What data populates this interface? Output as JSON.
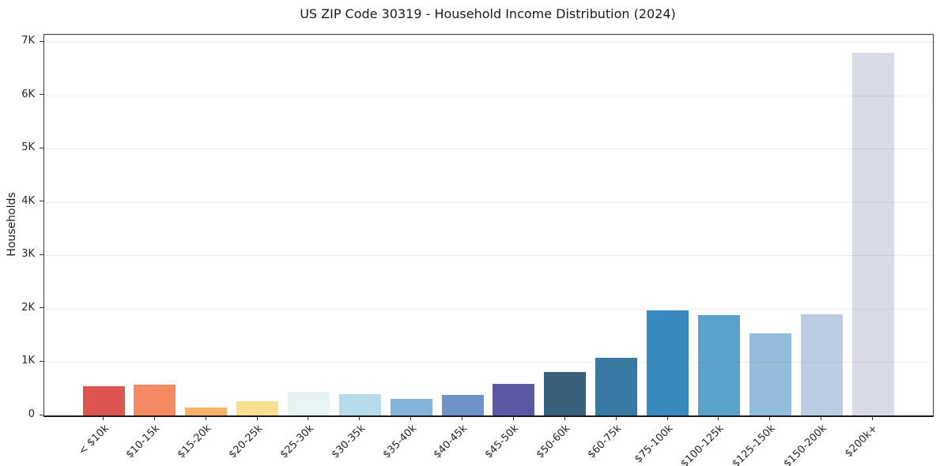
{
  "chart_data": {
    "type": "bar",
    "title": "US ZIP Code 30319 - Household Income Distribution (2024)",
    "xlabel": "",
    "ylabel": "Households",
    "categories": [
      "< $10k",
      "$10-15k",
      "$15-20k",
      "$20-25k",
      "$25-30k",
      "$30-35k",
      "$35-40k",
      "$40-45k",
      "$45-50k",
      "$50-60k",
      "$60-75k",
      "$75-100k",
      "$100-125k",
      "$125-150k",
      "$150-200k",
      "$200k+"
    ],
    "values": [
      550,
      580,
      150,
      270,
      440,
      400,
      310,
      390,
      590,
      810,
      1080,
      1970,
      1880,
      1540,
      1900,
      6800
    ],
    "bar_colors": [
      "#da564f",
      "#f58963",
      "#f8b16b",
      "#fbdf90",
      "#e6f2f4",
      "#b7dbe9",
      "#84b4d9",
      "#6d93c9",
      "#5c58a6",
      "#38607a",
      "#397aa2",
      "#3889bd",
      "#59a3ca",
      "#92bedb",
      "#bccde3",
      "#d8dae8"
    ],
    "ytick_labels": [
      "0",
      "1K",
      "2K",
      "3K",
      "4K",
      "5K",
      "6K",
      "7K"
    ],
    "ytick_values": [
      0,
      1000,
      2000,
      3000,
      4000,
      5000,
      6000,
      7000
    ],
    "ylim": [
      0,
      7140
    ],
    "grid": "horizontal",
    "legend": "none",
    "background_color": "#ffffff",
    "spine_color": "#1a1a1a"
  }
}
